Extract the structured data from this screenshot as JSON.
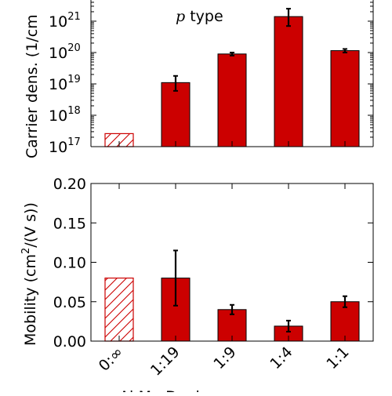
{
  "chart_data": [
    {
      "type": "bar",
      "title": "",
      "annotation": {
        "italic": "p",
        "text": " type"
      },
      "xlabel": "",
      "ylabel": "Carrier dens. (1/cm",
      "yscale": "log",
      "ylim": [
        1e+17,
        1e+22
      ],
      "yticks": [
        {
          "value": 1e+17,
          "base": "10",
          "exp": "17"
        },
        {
          "value": 1e+18,
          "base": "10",
          "exp": "18"
        },
        {
          "value": 1e+19,
          "base": "10",
          "exp": "19"
        },
        {
          "value": 1e+20,
          "base": "10",
          "exp": "20"
        },
        {
          "value": 1e+21,
          "base": "10",
          "exp": "21"
        }
      ],
      "categories": [
        "0:∞",
        "1:19",
        "1:9",
        "1:4",
        "1:1"
      ],
      "values": [
        2.6e+17,
        1.1e+19,
        9e+19,
        1.4e+21,
        1.15e+20
      ],
      "errors_low": [
        null,
        5e+18,
        1e+19,
        7e+20,
        1.5e+19
      ],
      "errors_high": [
        null,
        7e+18,
        1e+19,
        1.1e+21,
        1.5e+19
      ],
      "hatched": [
        true,
        false,
        false,
        false,
        false
      ],
      "grid": false
    },
    {
      "type": "bar",
      "title": "",
      "xlabel": "Al:Mg Dopin",
      "ylabel_parts": {
        "pre": "Mobility (cm",
        "sup": "2",
        "post": "/(V s))"
      },
      "yscale": "linear",
      "ylim": [
        0,
        0.2
      ],
      "yticks": [
        "0.00",
        "0.05",
        "0.10",
        "0.15",
        "0.20"
      ],
      "categories": [
        "0:∞",
        "1:19",
        "1:9",
        "1:4",
        "1:1"
      ],
      "values": [
        0.08,
        0.08,
        0.04,
        0.019,
        0.05
      ],
      "errors": [
        null,
        0.035,
        0.006,
        0.007,
        0.007
      ],
      "hatched": [
        true,
        false,
        false,
        false,
        false
      ],
      "grid": false
    }
  ],
  "colors": {
    "bar_fill": "#cc0000",
    "bar_edge": "#000000",
    "hatch_edge": "#cc0000"
  }
}
